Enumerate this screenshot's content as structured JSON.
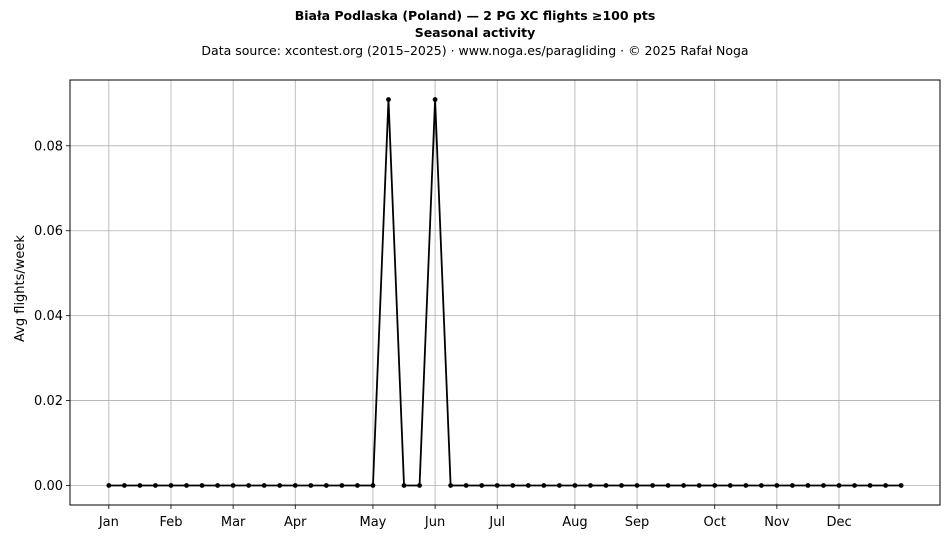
{
  "chart_data": {
    "type": "line",
    "title": "Biała Podlaska (Poland)  —  2 PG XC flights ≥100 pts",
    "subtitle": "Seasonal activity",
    "source_note": "Data source: xcontest.org (2015–2025)  ·  www.noga.es/paragliding  ·  © 2025 Rafał Noga",
    "xlabel": "",
    "ylabel": "Avg flights/week",
    "x_unit": "week of year",
    "xlim": [
      -2.5,
      53.5
    ],
    "ylim": [
      -0.0046,
      0.0955
    ],
    "yticks": [
      0.0,
      0.02,
      0.04,
      0.06,
      0.08
    ],
    "ytick_labels": [
      "0.00",
      "0.02",
      "0.04",
      "0.06",
      "0.08"
    ],
    "xticks": [
      {
        "label": "Jan",
        "week": 0
      },
      {
        "label": "Feb",
        "week": 4
      },
      {
        "label": "Mar",
        "week": 8
      },
      {
        "label": "Apr",
        "week": 12
      },
      {
        "label": "May",
        "week": 17
      },
      {
        "label": "Jun",
        "week": 21
      },
      {
        "label": "Jul",
        "week": 25
      },
      {
        "label": "Aug",
        "week": 30
      },
      {
        "label": "Sep",
        "week": 34
      },
      {
        "label": "Oct",
        "week": 39
      },
      {
        "label": "Nov",
        "week": 43
      },
      {
        "label": "Dec",
        "week": 47
      }
    ],
    "grid": true,
    "legend": "none",
    "series": [
      {
        "color": "#000000",
        "x": [
          0,
          1,
          2,
          3,
          4,
          5,
          6,
          7,
          8,
          9,
          10,
          11,
          12,
          13,
          14,
          15,
          16,
          17,
          18,
          19,
          20,
          21,
          22,
          23,
          24,
          25,
          26,
          27,
          28,
          29,
          30,
          31,
          32,
          33,
          34,
          35,
          36,
          37,
          38,
          39,
          40,
          41,
          42,
          43,
          44,
          45,
          46,
          47,
          48,
          49,
          50,
          51
        ],
        "values": [
          0,
          0,
          0,
          0,
          0,
          0,
          0,
          0,
          0,
          0,
          0,
          0,
          0,
          0,
          0,
          0,
          0,
          0,
          0.0909,
          0,
          0,
          0.0909,
          0,
          0,
          0,
          0,
          0,
          0,
          0,
          0,
          0,
          0,
          0,
          0,
          0,
          0,
          0,
          0,
          0,
          0,
          0,
          0,
          0,
          0,
          0,
          0,
          0,
          0,
          0,
          0,
          0,
          0
        ]
      }
    ]
  }
}
